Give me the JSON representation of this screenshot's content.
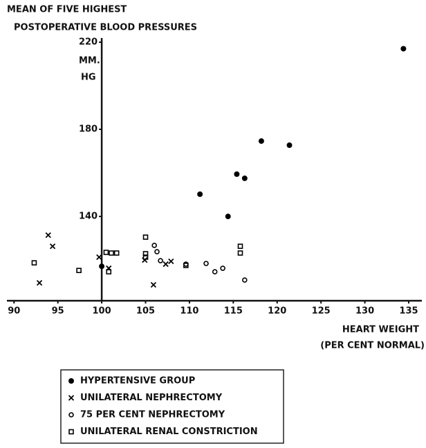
{
  "chart_data": {
    "type": "scatter",
    "title": [
      "MEAN OF FIVE HIGHEST",
      "POSTOPERATIVE BLOOD PRESSURES"
    ],
    "y_unit": [
      "MM.",
      "HG"
    ],
    "x_label": [
      "HEART WEIGHT",
      "(PER CENT NORMAL)"
    ],
    "xlim": [
      89.19,
      136.5
    ],
    "ylim": [
      101.3,
      221.9
    ],
    "xticks": [
      90,
      95,
      100,
      105,
      110,
      115,
      120,
      125,
      130,
      135
    ],
    "yticks": [
      140,
      180,
      220
    ],
    "y_axis_crosses": 100,
    "grid": false,
    "series": [
      {
        "name": "HYPERTENSIVE GROUP",
        "marker": "dot",
        "color": "#000000",
        "x": [
          134.4,
          118.2,
          121.4,
          115.4,
          116.3,
          111.2,
          114.4,
          100.0
        ],
        "values": [
          217,
          174.6,
          172.7,
          159.4,
          157.5,
          150.2,
          140,
          117.1
        ]
      },
      {
        "name": "UNILATERAL NEPHRECTOMY",
        "marker": "x",
        "color": "#000000",
        "x": [
          93.9,
          94.4,
          92.9,
          99.7,
          100.8,
          104.9,
          107.3,
          107.9,
          105.9
        ],
        "values": [
          131.4,
          126.3,
          109.5,
          121.3,
          116.2,
          120,
          118.1,
          119.4,
          108.6
        ]
      },
      {
        "name": "75 PER CENT NEPHRECTOMY",
        "marker": "circle",
        "color": "#000000",
        "x": [
          106.0,
          106.3,
          106.7,
          109.6,
          111.9,
          112.9,
          113.8,
          116.3
        ],
        "values": [
          126.7,
          123.8,
          119.7,
          118.1,
          118.4,
          114.6,
          116.2,
          110.8
        ]
      },
      {
        "name": "UNILATERAL RENAL CONSTRICTION",
        "marker": "square",
        "color": "#000000",
        "x": [
          92.3,
          97.4,
          100.5,
          101.1,
          101.7,
          100.8,
          105.0,
          105.0,
          105.0,
          109.6,
          115.8,
          115.8
        ],
        "values": [
          118.7,
          115.2,
          123.5,
          123.2,
          123.2,
          114.6,
          130.5,
          122.9,
          121.3,
          117.5,
          126.3,
          123.2
        ]
      }
    ]
  }
}
